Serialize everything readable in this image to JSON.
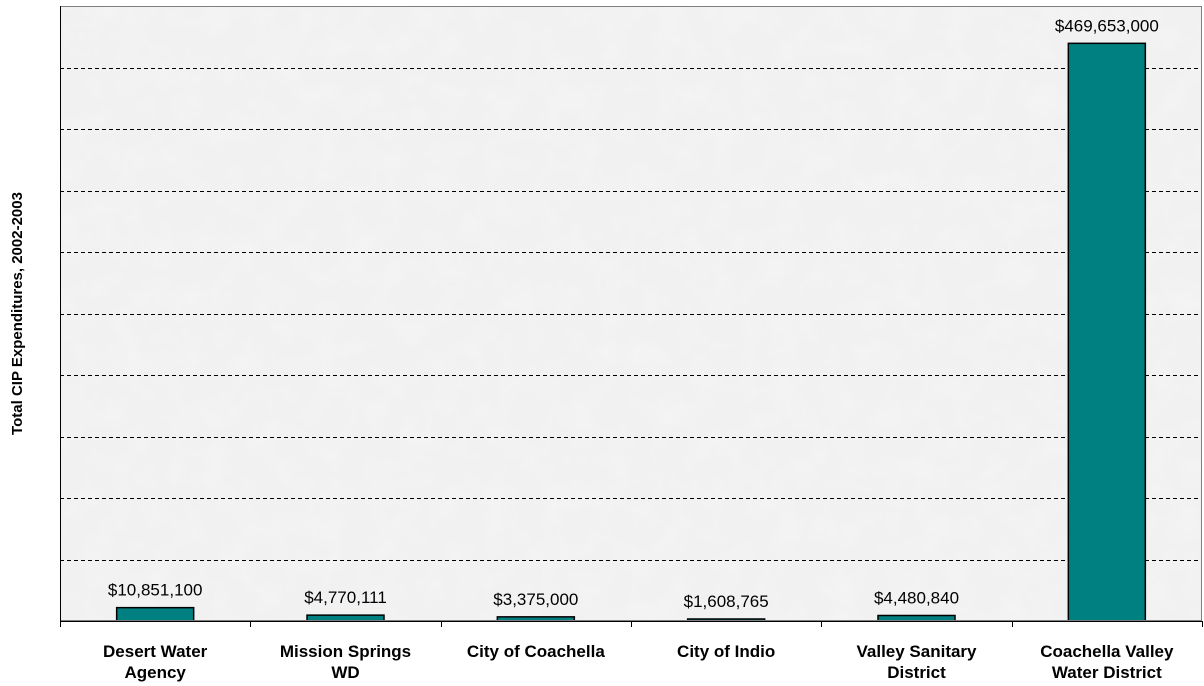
{
  "chart_data": {
    "type": "bar",
    "title": "",
    "xlabel": "",
    "ylabel": "Total CIP Expenditures, 2002-2003",
    "categories": [
      "Desert Water Agency",
      "Mission Springs WD",
      "City of Coachella",
      "City of Indio",
      "Valley Sanitary District",
      "Coachella Valley Water District"
    ],
    "category_label_lines": [
      [
        "Desert Water",
        "Agency"
      ],
      [
        "Mission Springs",
        "WD"
      ],
      [
        "City of Coachella"
      ],
      [
        "City of Indio"
      ],
      [
        "Valley Sanitary",
        "District"
      ],
      [
        "Coachella Valley",
        "Water District"
      ]
    ],
    "values": [
      10851100,
      4770111,
      3375000,
      1608765,
      4480840,
      469653000
    ],
    "data_labels": [
      "$10,851,100",
      "$4,770,111",
      "$3,375,000",
      "$1,608,765",
      "$4,480,840",
      "$469,653,000"
    ],
    "ylim": [
      0,
      500000000
    ],
    "y_gridline_step": 50000000,
    "grid": "horizontal dashed",
    "y_tick_labels_shown": false,
    "legend": "none",
    "colors": {
      "bar_fill": "#008080",
      "bar_stroke": "#000000",
      "plot_background": "#f1f1f1",
      "gridline": "#000000"
    }
  }
}
